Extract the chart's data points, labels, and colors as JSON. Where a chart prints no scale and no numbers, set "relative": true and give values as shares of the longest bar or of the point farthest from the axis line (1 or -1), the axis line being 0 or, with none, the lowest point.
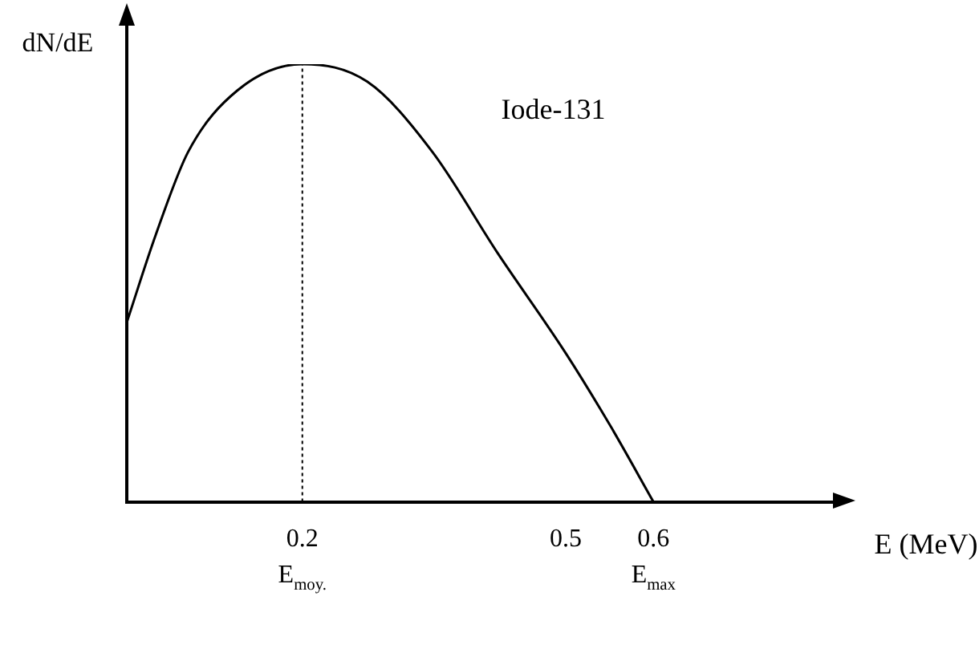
{
  "chart_data": {
    "type": "line",
    "title": "Iode-131",
    "xlabel": "E (MeV)",
    "ylabel": "dN/dE",
    "relative": true,
    "x": [
      0,
      0.033,
      0.07,
      0.126,
      0.2,
      0.274,
      0.348,
      0.422,
      0.5,
      0.552,
      0.6
    ],
    "series": [
      {
        "color": "#000000",
        "values": [
          0.41,
          0.61,
          0.8,
          0.94,
          1,
          0.96,
          0.8,
          0.57,
          0.34,
          0.17,
          0
        ]
      }
    ],
    "xlim": [
      0,
      0.81
    ],
    "xticks": [
      0.2,
      0.5,
      0.6
    ],
    "ref_lines": [
      {
        "axis": "x",
        "value": 0.2,
        "label": "E$_{moy.}$",
        "line_style": "dotted",
        "color": "#000000"
      }
    ],
    "annotations": [
      {
        "text": "E$_{max}$",
        "x": 0.6,
        "y": 0
      }
    ],
    "grid": false,
    "legend": false,
    "marker": "none",
    "line_style": "solid"
  }
}
